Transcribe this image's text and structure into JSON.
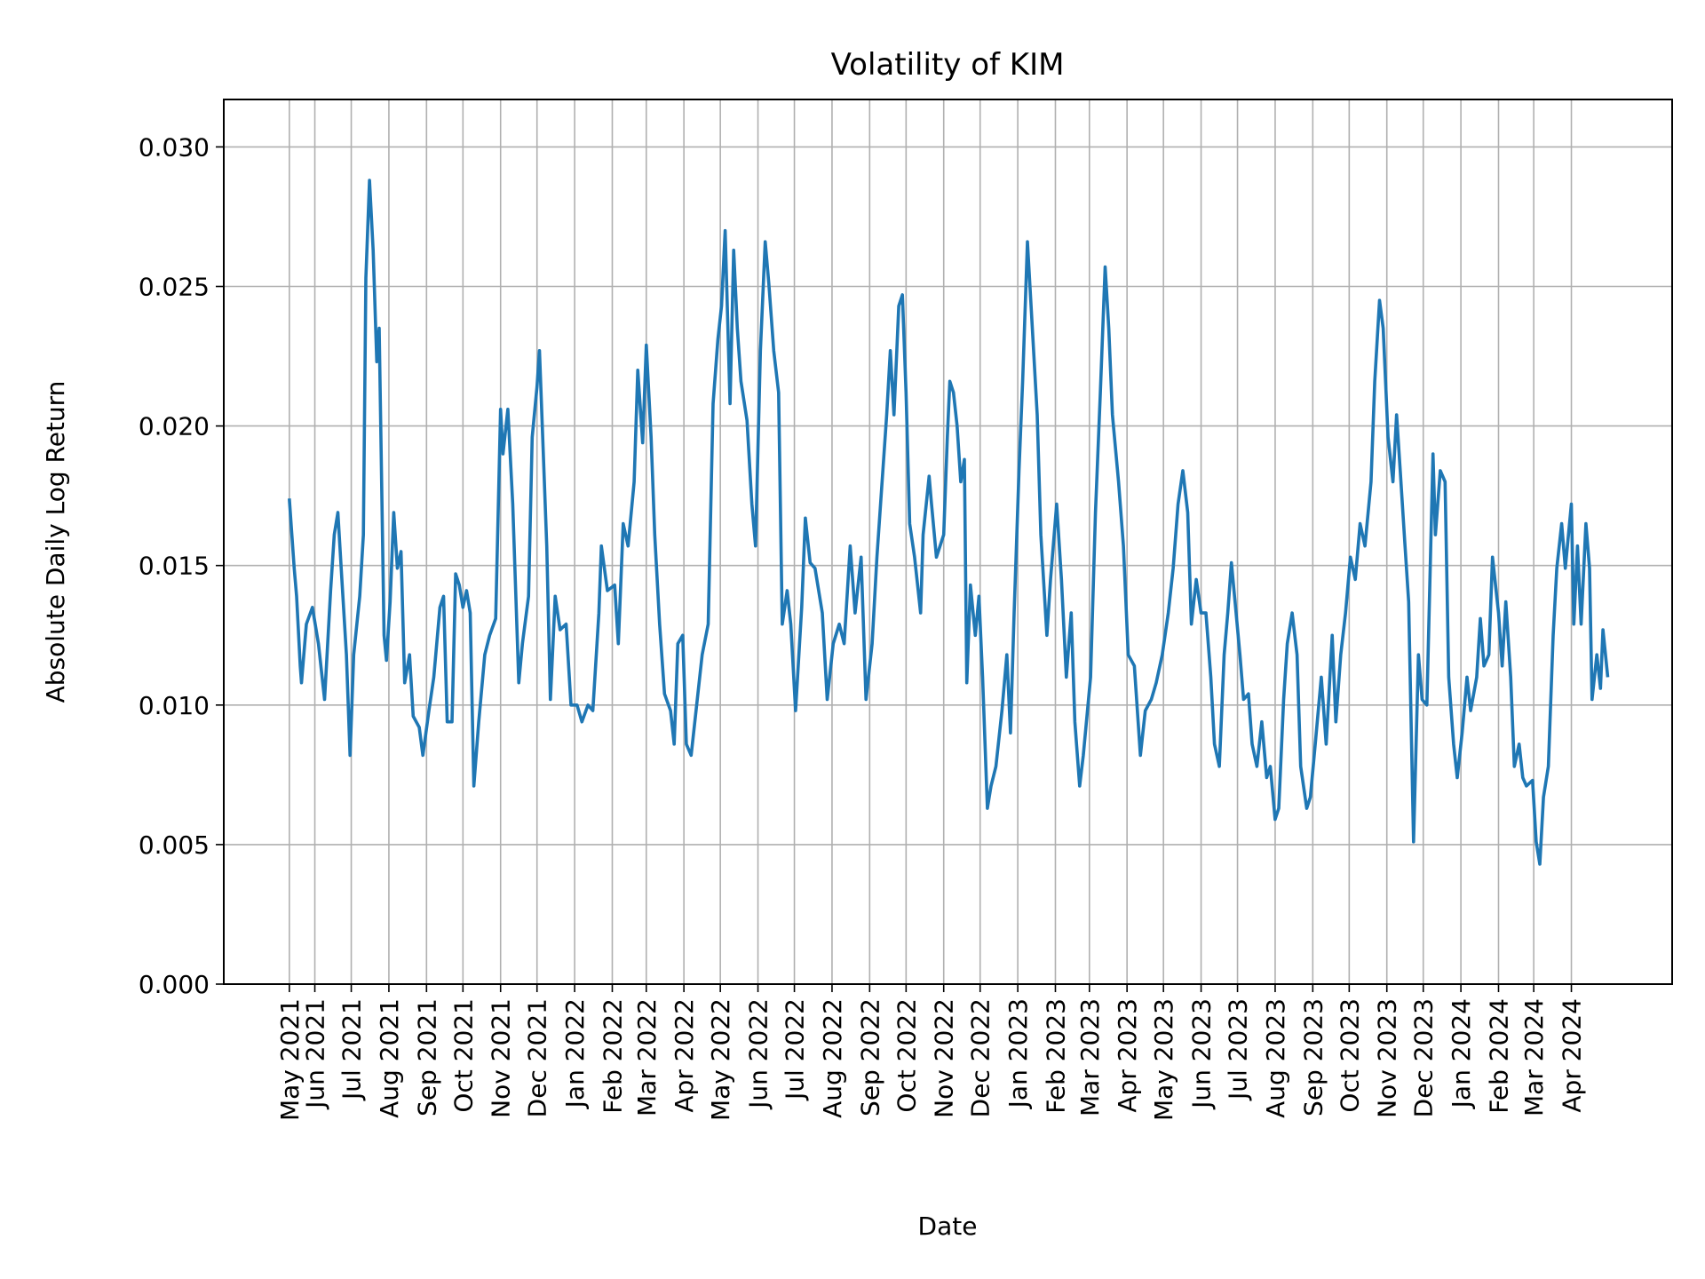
{
  "chart_data": {
    "type": "line",
    "title": "Volatility of KIM",
    "xlabel": "Date",
    "ylabel": "Absolute Daily Log Return",
    "xlim": [
      "2021-03-18",
      "2024-06-23"
    ],
    "ylim": [
      0,
      0.0317
    ],
    "grid": true,
    "line_color": "#1f77b4",
    "grid_color": "#b0b0b0",
    "y_ticks": [
      {
        "value": 0.0,
        "label": "0.000"
      },
      {
        "value": 0.005,
        "label": "0.005"
      },
      {
        "value": 0.01,
        "label": "0.010"
      },
      {
        "value": 0.015,
        "label": "0.015"
      },
      {
        "value": 0.02,
        "label": "0.020"
      },
      {
        "value": 0.025,
        "label": "0.025"
      },
      {
        "value": 0.03,
        "label": "0.030"
      }
    ],
    "x_ticks": [
      {
        "date": "2021-05-11",
        "label": "May 2021"
      },
      {
        "date": "2021-06-01",
        "label": "Jun 2021"
      },
      {
        "date": "2021-07-01",
        "label": "Jul 2021"
      },
      {
        "date": "2021-08-01",
        "label": "Aug 2021"
      },
      {
        "date": "2021-09-01",
        "label": "Sep 2021"
      },
      {
        "date": "2021-10-01",
        "label": "Oct 2021"
      },
      {
        "date": "2021-11-01",
        "label": "Nov 2021"
      },
      {
        "date": "2021-12-01",
        "label": "Dec 2021"
      },
      {
        "date": "2022-01-01",
        "label": "Jan 2022"
      },
      {
        "date": "2022-02-01",
        "label": "Feb 2022"
      },
      {
        "date": "2022-03-01",
        "label": "Mar 2022"
      },
      {
        "date": "2022-04-01",
        "label": "Apr 2022"
      },
      {
        "date": "2022-05-01",
        "label": "May 2022"
      },
      {
        "date": "2022-06-01",
        "label": "Jun 2022"
      },
      {
        "date": "2022-07-01",
        "label": "Jul 2022"
      },
      {
        "date": "2022-08-01",
        "label": "Aug 2022"
      },
      {
        "date": "2022-09-01",
        "label": "Sep 2022"
      },
      {
        "date": "2022-10-01",
        "label": "Oct 2022"
      },
      {
        "date": "2022-11-01",
        "label": "Nov 2022"
      },
      {
        "date": "2022-12-01",
        "label": "Dec 2022"
      },
      {
        "date": "2023-01-01",
        "label": "Jan 2023"
      },
      {
        "date": "2023-02-01",
        "label": "Feb 2023"
      },
      {
        "date": "2023-03-01",
        "label": "Mar 2023"
      },
      {
        "date": "2023-04-01",
        "label": "Apr 2023"
      },
      {
        "date": "2023-05-01",
        "label": "May 2023"
      },
      {
        "date": "2023-06-01",
        "label": "Jun 2023"
      },
      {
        "date": "2023-07-01",
        "label": "Jul 2023"
      },
      {
        "date": "2023-08-01",
        "label": "Aug 2023"
      },
      {
        "date": "2023-09-01",
        "label": "Sep 2023"
      },
      {
        "date": "2023-10-01",
        "label": "Oct 2023"
      },
      {
        "date": "2023-11-01",
        "label": "Nov 2023"
      },
      {
        "date": "2023-12-01",
        "label": "Dec 2023"
      },
      {
        "date": "2024-01-01",
        "label": "Jan 2024"
      },
      {
        "date": "2024-02-01",
        "label": "Feb 2024"
      },
      {
        "date": "2024-03-01",
        "label": "Mar 2024"
      },
      {
        "date": "2024-04-01",
        "label": "Apr 2024"
      }
    ],
    "series": [
      {
        "x": [
          "2021-05-11",
          "2021-05-15",
          "2021-05-17",
          "2021-05-20",
          "2021-05-21",
          "2021-05-25",
          "2021-05-30",
          "2021-06-04",
          "2021-06-09",
          "2021-06-14",
          "2021-06-17",
          "2021-06-20",
          "2021-06-23",
          "2021-06-27",
          "2021-06-30",
          "2021-07-03",
          "2021-07-08",
          "2021-07-11",
          "2021-07-13",
          "2021-07-16",
          "2021-07-19",
          "2021-07-22",
          "2021-07-24",
          "2021-07-28",
          "2021-07-30",
          "2021-08-02",
          "2021-08-05",
          "2021-08-08",
          "2021-08-11",
          "2021-08-14",
          "2021-08-18",
          "2021-08-21",
          "2021-08-26",
          "2021-08-29",
          "2021-09-03",
          "2021-09-07",
          "2021-09-12",
          "2021-09-15",
          "2021-09-18",
          "2021-09-22",
          "2021-09-25",
          "2021-09-28",
          "2021-10-01",
          "2021-10-04",
          "2021-10-07",
          "2021-10-10",
          "2021-10-14",
          "2021-10-19",
          "2021-10-23",
          "2021-10-28",
          "2021-11-01",
          "2021-11-03",
          "2021-11-07",
          "2021-11-11",
          "2021-11-16",
          "2021-11-19",
          "2021-11-24",
          "2021-11-27",
          "2021-12-01",
          "2021-12-03",
          "2021-12-06",
          "2021-12-09",
          "2021-12-12",
          "2021-12-16",
          "2021-12-20",
          "2021-12-25",
          "2021-12-29",
          "2022-01-03",
          "2022-01-07",
          "2022-01-12",
          "2022-01-16",
          "2022-01-21",
          "2022-01-23",
          "2022-01-28",
          "2022-02-03",
          "2022-02-06",
          "2022-02-10",
          "2022-02-14",
          "2022-02-19",
          "2022-02-22",
          "2022-02-26",
          "2022-03-01",
          "2022-03-05",
          "2022-03-08",
          "2022-03-12",
          "2022-03-16",
          "2022-03-21",
          "2022-03-24",
          "2022-03-27",
          "2022-03-31",
          "2022-04-03",
          "2022-04-07",
          "2022-04-12",
          "2022-04-16",
          "2022-04-21",
          "2022-04-25",
          "2022-04-29",
          "2022-05-02",
          "2022-05-05",
          "2022-05-09",
          "2022-05-12",
          "2022-05-15",
          "2022-05-18",
          "2022-05-23",
          "2022-05-27",
          "2022-05-30",
          "2022-06-03",
          "2022-06-07",
          "2022-06-10",
          "2022-06-14",
          "2022-06-18",
          "2022-06-21",
          "2022-06-25",
          "2022-06-28",
          "2022-07-02",
          "2022-07-07",
          "2022-07-10",
          "2022-07-14",
          "2022-07-18",
          "2022-07-24",
          "2022-07-28",
          "2022-08-02",
          "2022-08-07",
          "2022-08-11",
          "2022-08-16",
          "2022-08-20",
          "2022-08-25",
          "2022-08-29",
          "2022-09-03",
          "2022-09-07",
          "2022-09-10",
          "2022-09-15",
          "2022-09-18",
          "2022-09-21",
          "2022-09-25",
          "2022-09-28",
          "2022-10-01",
          "2022-10-04",
          "2022-10-08",
          "2022-10-13",
          "2022-10-15",
          "2022-10-20",
          "2022-10-22",
          "2022-10-26",
          "2022-11-01",
          "2022-11-04",
          "2022-11-06",
          "2022-11-09",
          "2022-11-12",
          "2022-11-15",
          "2022-11-18",
          "2022-11-20",
          "2022-11-23",
          "2022-11-27",
          "2022-11-30",
          "2022-12-03",
          "2022-12-07",
          "2022-12-10",
          "2022-12-14",
          "2022-12-19",
          "2022-12-23",
          "2022-12-26",
          "2022-12-29",
          "2023-01-02",
          "2023-01-05",
          "2023-01-09",
          "2023-01-12",
          "2023-01-17",
          "2023-01-20",
          "2023-01-25",
          "2023-01-28",
          "2023-02-02",
          "2023-02-06",
          "2023-02-10",
          "2023-02-14",
          "2023-02-17",
          "2023-02-21",
          "2023-02-24",
          "2023-03-02",
          "2023-03-06",
          "2023-03-10",
          "2023-03-14",
          "2023-03-17",
          "2023-03-20",
          "2023-03-25",
          "2023-03-29",
          "2023-04-02",
          "2023-04-07",
          "2023-04-12",
          "2023-04-16",
          "2023-04-21",
          "2023-04-25",
          "2023-04-30",
          "2023-05-05",
          "2023-05-09",
          "2023-05-13",
          "2023-05-17",
          "2023-05-21",
          "2023-05-24",
          "2023-05-28",
          "2023-06-01",
          "2023-06-05",
          "2023-06-09",
          "2023-06-12",
          "2023-06-16",
          "2023-06-20",
          "2023-06-23",
          "2023-06-26",
          "2023-06-29",
          "2023-07-03",
          "2023-07-06",
          "2023-07-10",
          "2023-07-13",
          "2023-07-17",
          "2023-07-21",
          "2023-07-25",
          "2023-07-28",
          "2023-08-01",
          "2023-08-04",
          "2023-08-08",
          "2023-08-11",
          "2023-08-15",
          "2023-08-19",
          "2023-08-22",
          "2023-08-27",
          "2023-08-30",
          "2023-09-03",
          "2023-09-08",
          "2023-09-12",
          "2023-09-17",
          "2023-09-20",
          "2023-09-24",
          "2023-09-28",
          "2023-10-02",
          "2023-10-06",
          "2023-10-10",
          "2023-10-14",
          "2023-10-19",
          "2023-10-22",
          "2023-10-26",
          "2023-10-29",
          "2023-11-02",
          "2023-11-06",
          "2023-11-09",
          "2023-11-12",
          "2023-11-16",
          "2023-11-19",
          "2023-11-23",
          "2023-11-27",
          "2023-11-30",
          "2023-12-04",
          "2023-12-09",
          "2023-12-11",
          "2023-12-15",
          "2023-12-19",
          "2023-12-22",
          "2023-12-26",
          "2023-12-29",
          "2024-01-02",
          "2024-01-06",
          "2024-01-09",
          "2024-01-14",
          "2024-01-17",
          "2024-01-20",
          "2024-01-24",
          "2024-01-27",
          "2024-02-01",
          "2024-02-04",
          "2024-02-07",
          "2024-02-11",
          "2024-02-14",
          "2024-02-18",
          "2024-02-21",
          "2024-02-24",
          "2024-02-29",
          "2024-03-03",
          "2024-03-06",
          "2024-03-09",
          "2024-03-13",
          "2024-03-17",
          "2024-03-20",
          "2024-03-24",
          "2024-03-27",
          "2024-04-01",
          "2024-04-03",
          "2024-04-06",
          "2024-04-09",
          "2024-04-13",
          "2024-04-16",
          "2024-04-18",
          "2024-04-22",
          "2024-04-25",
          "2024-04-27",
          "2024-05-01"
        ],
        "y": [
          0.0174,
          0.0149,
          0.0139,
          0.0114,
          0.0108,
          0.0129,
          0.0135,
          0.0122,
          0.0102,
          0.0141,
          0.0161,
          0.0169,
          0.0147,
          0.0118,
          0.0082,
          0.0118,
          0.0139,
          0.0161,
          0.0253,
          0.0288,
          0.0263,
          0.0223,
          0.0235,
          0.0125,
          0.0116,
          0.0137,
          0.0169,
          0.0149,
          0.0155,
          0.0108,
          0.0118,
          0.0096,
          0.0092,
          0.0082,
          0.0098,
          0.011,
          0.0135,
          0.0139,
          0.0094,
          0.0094,
          0.0147,
          0.0143,
          0.0135,
          0.0141,
          0.0133,
          0.0071,
          0.0094,
          0.0118,
          0.0125,
          0.0131,
          0.0206,
          0.019,
          0.0206,
          0.0172,
          0.0108,
          0.0122,
          0.0139,
          0.0196,
          0.0214,
          0.0227,
          0.0192,
          0.0157,
          0.0102,
          0.0139,
          0.0127,
          0.0129,
          0.01,
          0.01,
          0.0094,
          0.01,
          0.0098,
          0.0133,
          0.0157,
          0.0141,
          0.0143,
          0.0122,
          0.0165,
          0.0157,
          0.018,
          0.022,
          0.0194,
          0.0229,
          0.0196,
          0.0161,
          0.0129,
          0.0104,
          0.0098,
          0.0086,
          0.0122,
          0.0125,
          0.0086,
          0.0082,
          0.0102,
          0.0118,
          0.0129,
          0.0208,
          0.0231,
          0.0243,
          0.027,
          0.0208,
          0.0263,
          0.0235,
          0.0216,
          0.0202,
          0.0172,
          0.0157,
          0.0227,
          0.0266,
          0.0251,
          0.0227,
          0.0212,
          0.0129,
          0.0141,
          0.0129,
          0.0098,
          0.0135,
          0.0167,
          0.0151,
          0.0149,
          0.0133,
          0.0102,
          0.0122,
          0.0129,
          0.0122,
          0.0157,
          0.0133,
          0.0153,
          0.0102,
          0.0122,
          0.0153,
          0.0172,
          0.0204,
          0.0227,
          0.0204,
          0.0243,
          0.0247,
          0.0212,
          0.0165,
          0.0153,
          0.0133,
          0.0161,
          0.0182,
          0.0172,
          0.0153,
          0.0161,
          0.0196,
          0.0216,
          0.0212,
          0.02,
          0.018,
          0.0188,
          0.0108,
          0.0143,
          0.0125,
          0.0139,
          0.011,
          0.0063,
          0.0071,
          0.0078,
          0.0098,
          0.0118,
          0.009,
          0.0133,
          0.0184,
          0.0216,
          0.0266,
          0.0243,
          0.0204,
          0.0161,
          0.0125,
          0.0145,
          0.0172,
          0.0145,
          0.011,
          0.0133,
          0.0094,
          0.0071,
          0.0082,
          0.011,
          0.0169,
          0.0212,
          0.0257,
          0.0235,
          0.0204,
          0.018,
          0.0157,
          0.0118,
          0.0114,
          0.0082,
          0.0098,
          0.0102,
          0.0108,
          0.0118,
          0.0133,
          0.0149,
          0.0172,
          0.0184,
          0.0169,
          0.0129,
          0.0145,
          0.0133,
          0.0133,
          0.011,
          0.0086,
          0.0078,
          0.0118,
          0.0133,
          0.0151,
          0.0137,
          0.0118,
          0.0102,
          0.0104,
          0.0086,
          0.0078,
          0.0094,
          0.0074,
          0.0078,
          0.0059,
          0.0063,
          0.0102,
          0.0122,
          0.0133,
          0.0118,
          0.0078,
          0.0063,
          0.0067,
          0.0086,
          0.011,
          0.0086,
          0.0125,
          0.0094,
          0.0118,
          0.0133,
          0.0153,
          0.0145,
          0.0165,
          0.0157,
          0.018,
          0.0216,
          0.0245,
          0.0235,
          0.0196,
          0.018,
          0.0204,
          0.0184,
          0.0157,
          0.0137,
          0.0051,
          0.0118,
          0.0102,
          0.01,
          0.019,
          0.0161,
          0.0184,
          0.018,
          0.011,
          0.0086,
          0.0074,
          0.009,
          0.011,
          0.0098,
          0.011,
          0.0131,
          0.0114,
          0.0118,
          0.0153,
          0.0133,
          0.0114,
          0.0137,
          0.011,
          0.0078,
          0.0086,
          0.0074,
          0.0071,
          0.0073,
          0.0051,
          0.0043,
          0.0067,
          0.0078,
          0.0125,
          0.0149,
          0.0165,
          0.0149,
          0.0172,
          0.0129,
          0.0157,
          0.0129,
          0.0165,
          0.0149,
          0.0102,
          0.0118,
          0.0106,
          0.0127,
          0.011
        ]
      }
    ]
  }
}
